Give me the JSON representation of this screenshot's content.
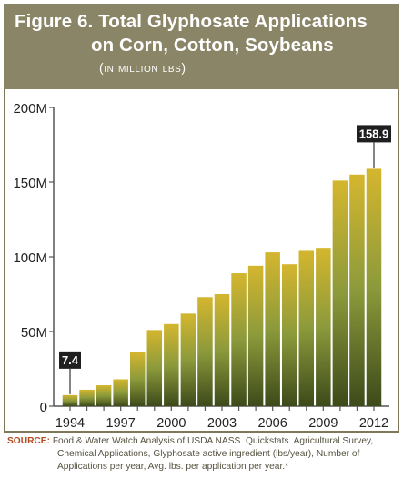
{
  "header": {
    "figure_label": "Figure 6.",
    "title_line1": "Total Glyphosate Applications",
    "title_line2": "on Corn, Cotton, Soybeans",
    "subtitle": "(in million lbs)"
  },
  "source": {
    "label": "SOURCE:",
    "line1": "Food & Water Watch Analysis of USDA NASS. Quickstats. Agricultural Survey,",
    "line2": "Chemical Applications, Glyphosate active ingredient (lbs/year), Number of",
    "line3": "Applications per year, Avg. lbs. per application per year.*"
  },
  "colors": {
    "header_bg": "#8a8566",
    "bar_top": "#d4b62e",
    "bar_mid": "#8c9a3b",
    "bar_bottom": "#3d4a1a",
    "callout_bg": "#1f1f1f",
    "source_label": "#b24a1f"
  },
  "chart_data": {
    "type": "bar",
    "title": "Total Glyphosate Applications on Corn, Cotton, Soybeans",
    "subtitle": "(in million lbs)",
    "x": [
      1994,
      1995,
      1996,
      1997,
      1998,
      1999,
      2000,
      2001,
      2002,
      2003,
      2004,
      2005,
      2006,
      2007,
      2008,
      2009,
      2010,
      2011,
      2012
    ],
    "values": [
      7.4,
      11,
      14,
      18,
      36,
      51,
      55,
      62,
      73,
      75,
      89,
      94,
      103,
      95,
      104,
      106,
      151,
      155,
      158.9
    ],
    "x_tick_labels": [
      "1994",
      "1997",
      "2000",
      "2003",
      "2006",
      "2009",
      "2012"
    ],
    "y_ticks": [
      0,
      50,
      100,
      150,
      200
    ],
    "y_tick_labels": [
      "0",
      "50M",
      "100M",
      "150M",
      "200M"
    ],
    "ylim": [
      0,
      200
    ],
    "callouts": [
      {
        "x": 1994,
        "label": "7.4"
      },
      {
        "x": 2012,
        "label": "158.9"
      }
    ],
    "grid": false,
    "legend": "none"
  }
}
